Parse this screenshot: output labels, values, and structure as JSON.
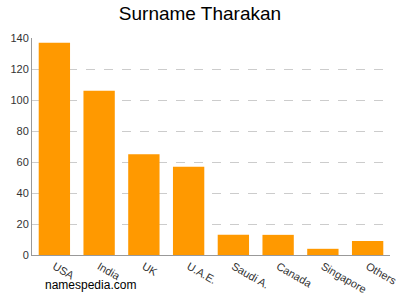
{
  "chart_data": {
    "type": "bar",
    "title": "Surname Tharakan",
    "categories": [
      "USA",
      "India",
      "UK",
      "U.A.E.",
      "Saudi A.",
      "Canada",
      "Singapore",
      "Others"
    ],
    "values": [
      137,
      106,
      65,
      57,
      13,
      13,
      4,
      9
    ],
    "color": "#ff9900",
    "ylim": [
      0,
      140
    ],
    "yticks": [
      0,
      20,
      40,
      60,
      80,
      100,
      120,
      140
    ],
    "grid": true,
    "annotation": "namespedia.com"
  }
}
